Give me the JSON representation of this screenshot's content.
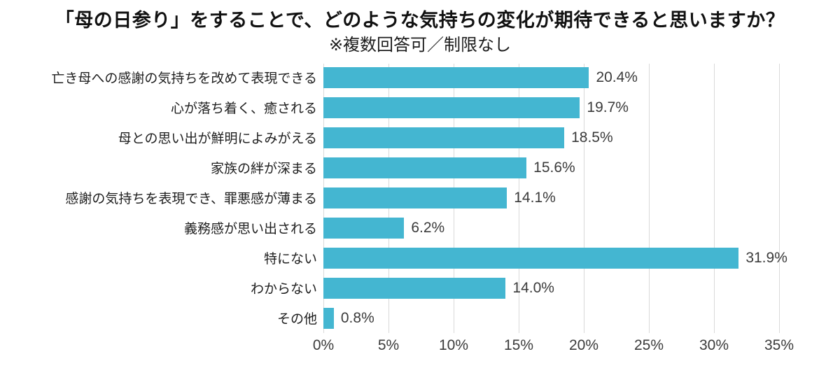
{
  "colors": {
    "bar": "#44b6d1",
    "gridline": "#d9d9d9",
    "tick_text": "#3b3b3b",
    "title_text": "#111111"
  },
  "chart_data": {
    "type": "bar",
    "orientation": "horizontal",
    "title": "「母の日参り」をすることで、どのような気持ちの変化が期待できると思いますか？",
    "subtitle": "※複数回答可／制限なし",
    "categories": [
      "亡き母への感謝の気持ちを改めて表現できる",
      "心が落ち着く、癒される",
      "母との思い出が鮮明によみがえる",
      "家族の絆が深まる",
      "感謝の気持ちを表現でき、罪悪感が薄まる",
      "義務感が思い出される",
      "特にない",
      "わからない",
      "その他"
    ],
    "values": [
      20.4,
      19.7,
      18.5,
      15.6,
      14.1,
      6.2,
      31.9,
      14.0,
      0.8
    ],
    "value_labels": [
      "20.4%",
      "19.7%",
      "18.5%",
      "15.6%",
      "14.1%",
      "6.2%",
      "31.9%",
      "14.0%",
      "0.8%"
    ],
    "xlabel": "",
    "ylabel": "",
    "xlim": [
      0,
      35
    ],
    "x_ticks": [
      "0%",
      "5%",
      "10%",
      "15%",
      "20%",
      "25%",
      "30%",
      "35%"
    ],
    "x_tick_values": [
      0,
      5,
      10,
      15,
      20,
      25,
      30,
      35
    ],
    "grid": true,
    "legend": "none"
  }
}
